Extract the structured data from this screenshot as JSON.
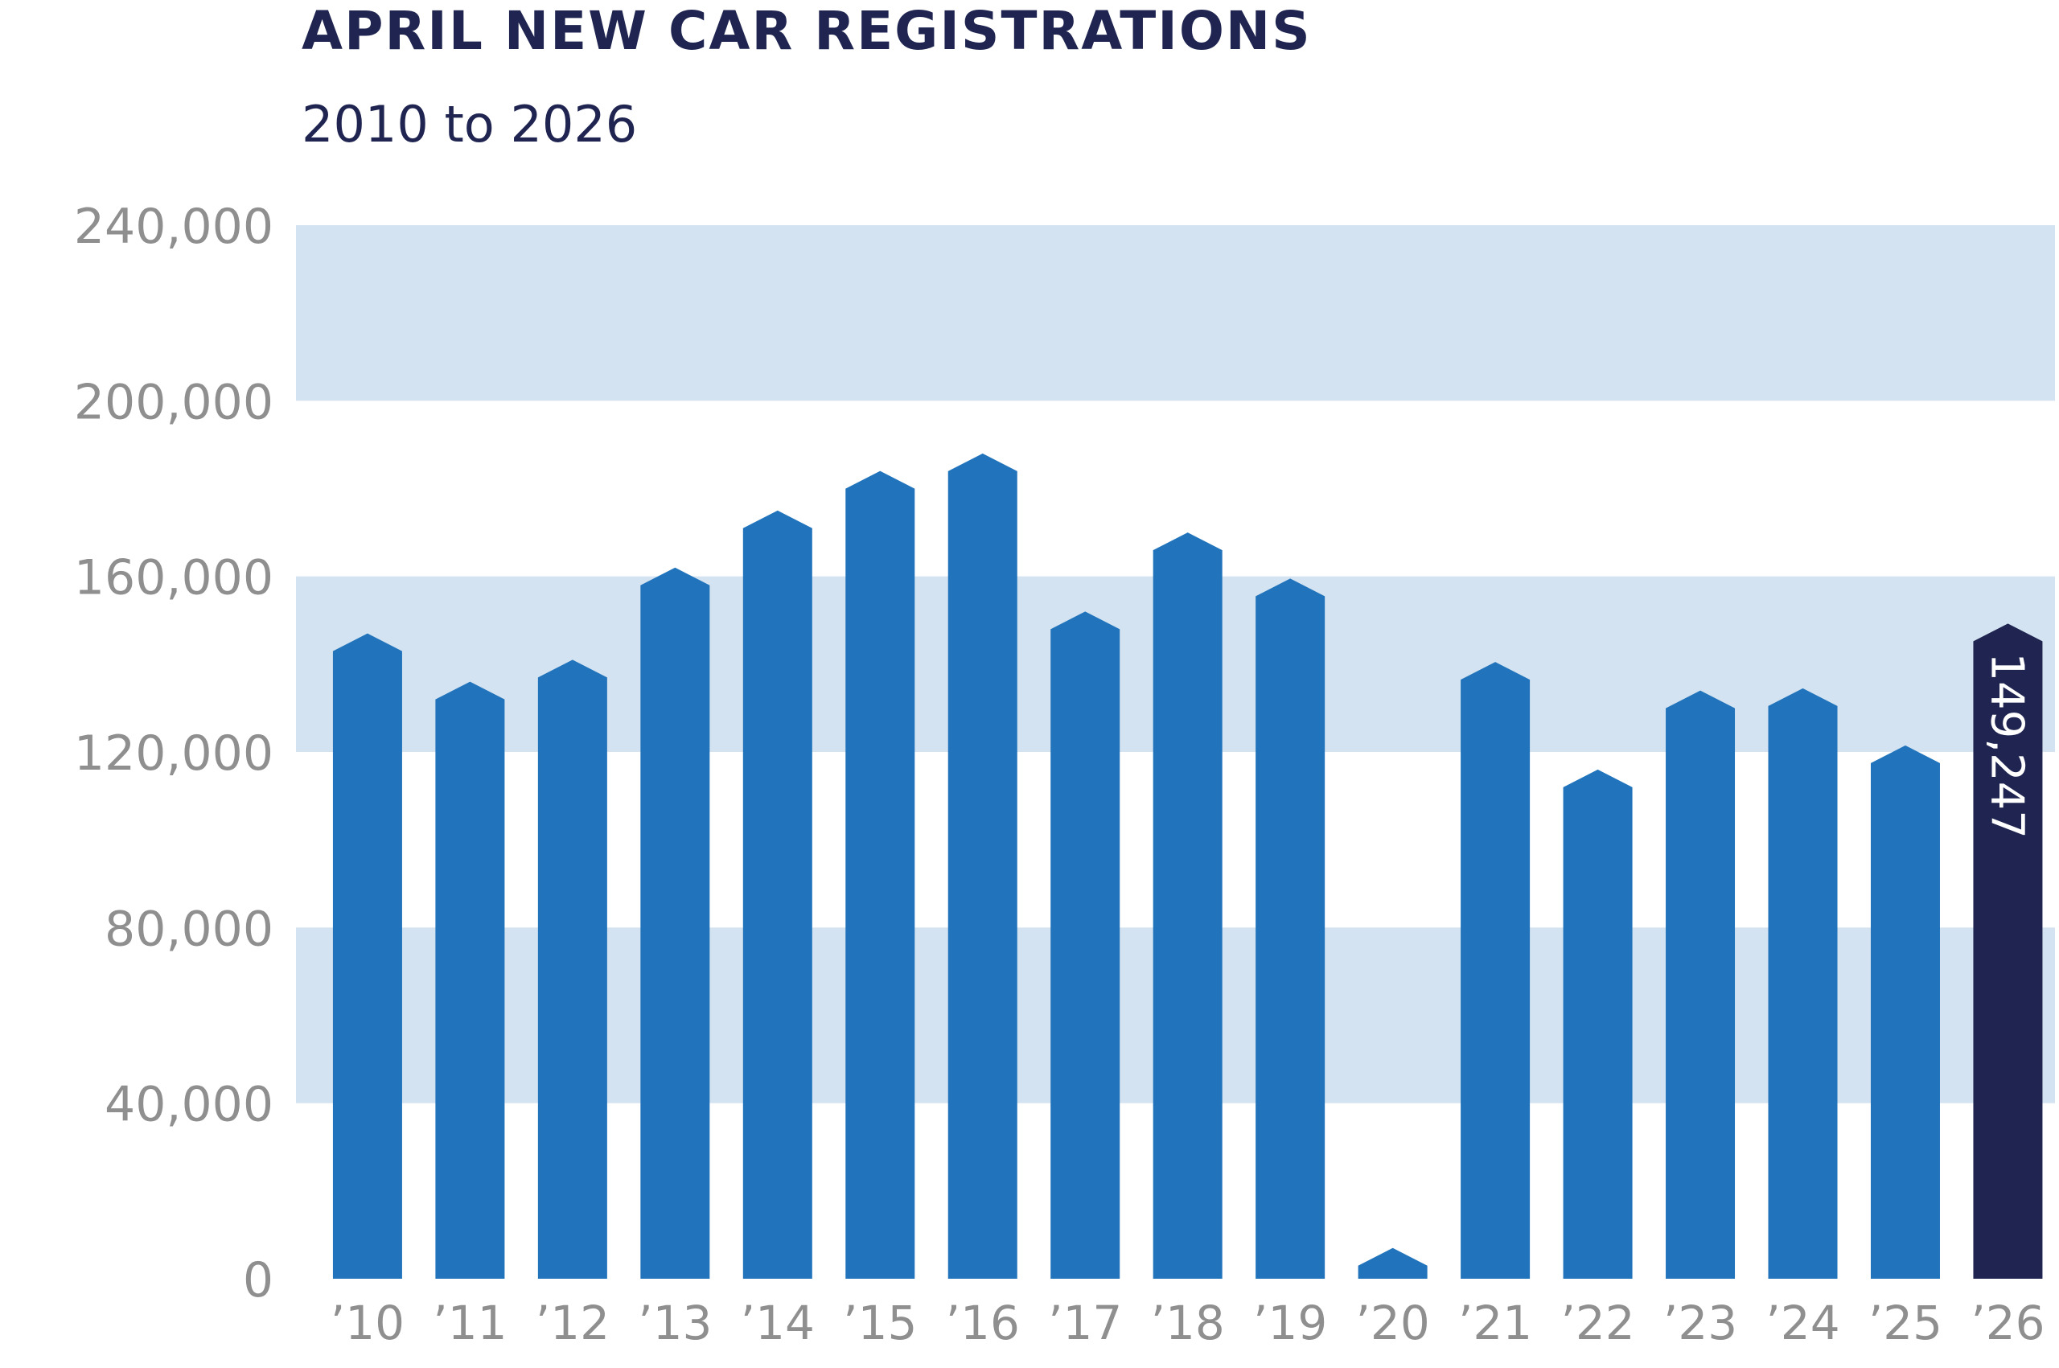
{
  "header": {
    "title": "APRIL NEW CAR REGISTRATIONS",
    "subtitle": "2010 to 2026"
  },
  "colors": {
    "bar": "#2174bb",
    "highlight_bar": "#1f2550",
    "band": "#d4e3f1",
    "tick_text": "#8f8f8f",
    "title": "#1f2550"
  },
  "chart_data": {
    "type": "bar",
    "title": "APRIL NEW CAR REGISTRATIONS",
    "subtitle": "2010 to 2026",
    "xlabel": "",
    "ylabel": "",
    "ylim": [
      0,
      240000
    ],
    "yticks": [
      0,
      40000,
      80000,
      120000,
      160000,
      200000,
      240000
    ],
    "ytick_labels": [
      "0",
      "40,000",
      "80,000",
      "120,000",
      "160,000",
      "200,000",
      "240,000"
    ],
    "categories": [
      "’10",
      "’11",
      "’12",
      "’13",
      "’14",
      "’15",
      "’16",
      "’17",
      "’18",
      "’19",
      "’20",
      "’21",
      "’22",
      "’23",
      "’24",
      "’25",
      "’26"
    ],
    "values": [
      147000,
      136000,
      141000,
      162000,
      175000,
      184000,
      188000,
      152000,
      170000,
      159500,
      7000,
      140500,
      116000,
      134000,
      134500,
      121500,
      149247
    ],
    "highlight_index": 16,
    "data_labels": {
      "16": "149,247"
    },
    "legend": "none",
    "grid": "alternating horizontal bands"
  }
}
